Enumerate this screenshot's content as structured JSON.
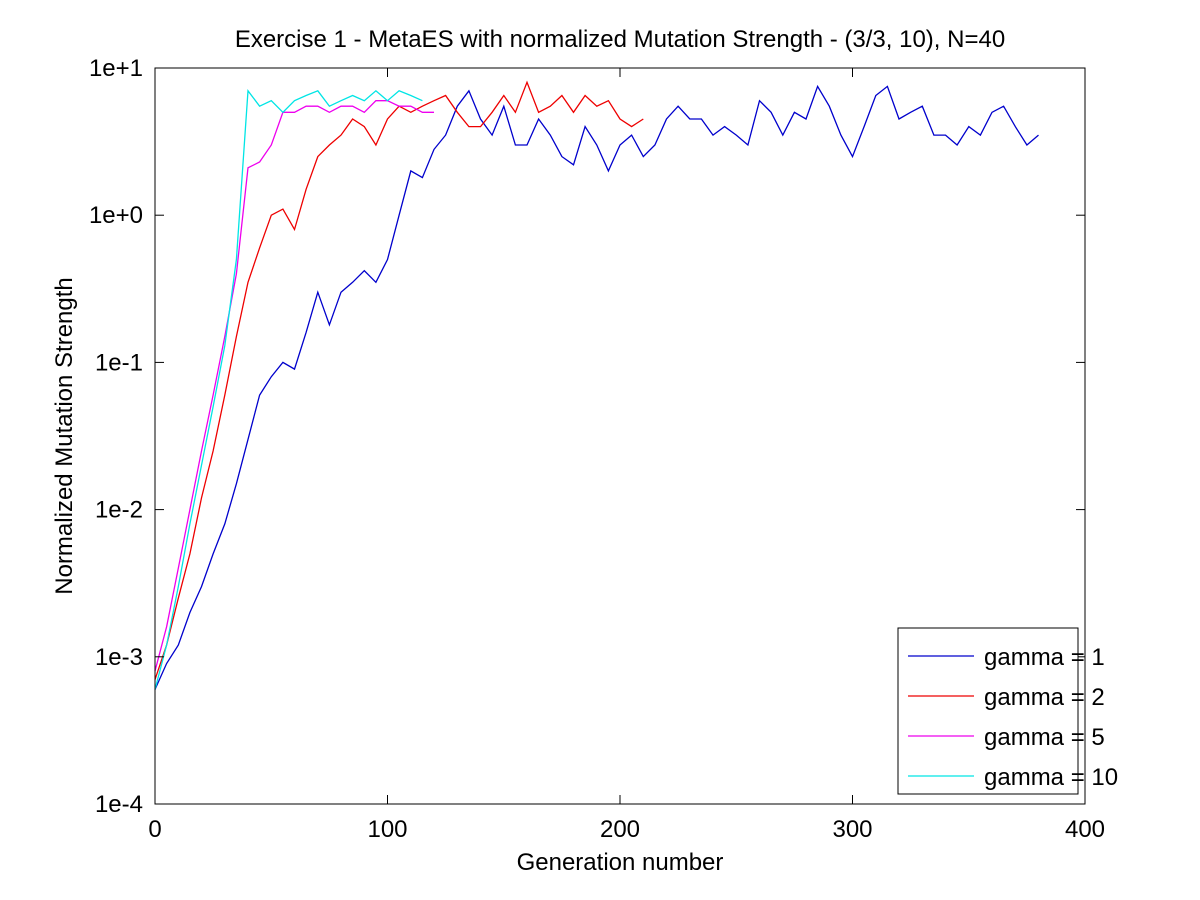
{
  "chart_data": {
    "type": "line",
    "title": "Exercise 1 - MetaES with normalized Mutation Strength - (3/3, 10), N=40",
    "xlabel": "Generation number",
    "ylabel": "Normalized Mutation Strength",
    "xlim": [
      0,
      400
    ],
    "ylim": [
      0.0001,
      10
    ],
    "yscale": "log",
    "x_ticks": [
      "0",
      "100",
      "200",
      "300",
      "400"
    ],
    "y_ticks": [
      "1e-4",
      "1e-3",
      "1e-2",
      "1e-1",
      "1e+0",
      "1e+1"
    ],
    "legend_position": "bottom-right",
    "grid": false,
    "series": [
      {
        "name": "gamma = 1",
        "color": "#0000cc",
        "x": [
          0,
          5,
          10,
          15,
          20,
          25,
          30,
          35,
          40,
          45,
          50,
          55,
          60,
          65,
          70,
          75,
          80,
          85,
          90,
          95,
          100,
          105,
          110,
          115,
          120,
          125,
          130,
          135,
          140,
          145,
          150,
          155,
          160,
          165,
          170,
          175,
          180,
          185,
          190,
          195,
          200,
          205,
          210,
          215,
          220,
          225,
          230,
          235,
          240,
          245,
          250,
          255,
          260,
          265,
          270,
          275,
          280,
          285,
          290,
          295,
          300,
          305,
          310,
          315,
          320,
          325,
          330,
          335,
          340,
          345,
          350,
          355,
          360,
          365,
          370,
          375,
          380
        ],
        "y": [
          0.0006,
          0.0009,
          0.0012,
          0.002,
          0.003,
          0.005,
          0.008,
          0.015,
          0.03,
          0.06,
          0.08,
          0.1,
          0.09,
          0.16,
          0.3,
          0.18,
          0.3,
          0.35,
          0.42,
          0.35,
          0.5,
          1.0,
          2.0,
          1.8,
          2.8,
          3.5,
          5.5,
          7.0,
          4.5,
          3.5,
          5.5,
          3.0,
          3.0,
          4.5,
          3.5,
          2.5,
          2.2,
          4.0,
          3.0,
          2.0,
          3.0,
          3.5,
          2.5,
          3.0,
          4.5,
          5.5,
          4.5,
          4.5,
          3.5,
          4.0,
          3.5,
          3.0,
          6.0,
          5.0,
          3.5,
          5.0,
          4.5,
          7.5,
          5.5,
          3.5,
          2.5,
          4.0,
          6.5,
          7.5,
          4.5,
          5.0,
          5.5,
          3.5,
          3.5,
          3.0,
          4.0,
          3.5,
          5.0,
          5.5,
          4.0,
          3.0,
          3.5
        ]
      },
      {
        "name": "gamma = 2",
        "color": "#ee0000",
        "x": [
          0,
          5,
          10,
          15,
          20,
          25,
          30,
          35,
          40,
          45,
          50,
          55,
          60,
          65,
          70,
          75,
          80,
          85,
          90,
          95,
          100,
          105,
          110,
          115,
          120,
          125,
          130,
          135,
          140,
          145,
          150,
          155,
          160,
          165,
          170,
          175,
          180,
          185,
          190,
          195,
          200,
          205,
          210
        ],
        "y": [
          0.0007,
          0.0012,
          0.0025,
          0.005,
          0.012,
          0.025,
          0.06,
          0.15,
          0.35,
          0.6,
          1.0,
          1.1,
          0.8,
          1.5,
          2.5,
          3.0,
          3.5,
          4.5,
          4.0,
          3.0,
          4.5,
          5.5,
          5.0,
          5.5,
          6.0,
          6.5,
          5.0,
          4.0,
          4.0,
          5.0,
          6.5,
          5.0,
          8.0,
          5.0,
          5.5,
          6.5,
          5.0,
          6.5,
          5.5,
          6.0,
          4.5,
          4.0,
          4.5
        ]
      },
      {
        "name": "gamma = 5",
        "color": "#ee00ee",
        "x": [
          0,
          5,
          10,
          15,
          20,
          25,
          30,
          35,
          40,
          45,
          50,
          55,
          60,
          65,
          70,
          75,
          80,
          85,
          90,
          95,
          100,
          105,
          110,
          115,
          120
        ],
        "y": [
          0.0008,
          0.0016,
          0.004,
          0.01,
          0.025,
          0.06,
          0.15,
          0.4,
          2.1,
          2.3,
          3.0,
          5.0,
          5.0,
          5.5,
          5.5,
          5.0,
          5.5,
          5.5,
          5.0,
          6.0,
          6.0,
          5.5,
          5.5,
          5.0,
          5.0
        ]
      },
      {
        "name": "gamma = 10",
        "color": "#00e5e5",
        "x": [
          0,
          5,
          10,
          15,
          20,
          25,
          30,
          35,
          40,
          45,
          50,
          55,
          60,
          65,
          70,
          75,
          80,
          85,
          90,
          95,
          100,
          105,
          110,
          115
        ],
        "y": [
          0.0006,
          0.0012,
          0.003,
          0.008,
          0.02,
          0.05,
          0.13,
          0.5,
          7.0,
          5.5,
          6.0,
          5.0,
          6.0,
          6.5,
          7.0,
          5.5,
          6.0,
          6.5,
          6.0,
          7.0,
          6.0,
          7.0,
          6.5,
          6.0
        ]
      }
    ]
  }
}
